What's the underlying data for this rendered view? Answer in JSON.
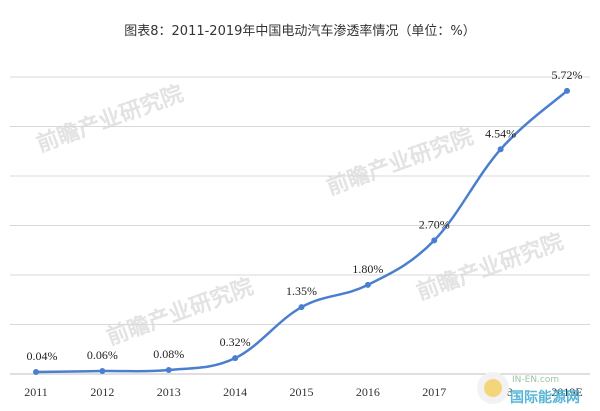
{
  "chart_data": {
    "type": "line",
    "title": "图表8：2011-2019年中国电动汽车渗透率情况（单位：%）",
    "categories": [
      "2011",
      "2012",
      "2013",
      "2014",
      "2015",
      "2016",
      "2017",
      "2018",
      "2019E"
    ],
    "series": [
      {
        "values": [
          0.04,
          0.06,
          0.08,
          0.32,
          1.35,
          1.8,
          2.7,
          4.54,
          5.72
        ],
        "labels": [
          "0.04%",
          "0.06%",
          "0.08%",
          "0.32%",
          "1.35%",
          "1.80%",
          "2.70%",
          "4.54%",
          "5.72%"
        ],
        "color": "#4a7fcf"
      }
    ],
    "ylim": [
      0,
      6
    ],
    "grid": true,
    "xlabel": "",
    "ylabel": ""
  },
  "watermark": "前瞻产业研究院",
  "logo": {
    "top": "IN-EN.com",
    "bottom": "国际能源网"
  },
  "colors": {
    "line": "#4a7fcf",
    "grid": "#d9d9d9",
    "axis": "#bfbfbf"
  }
}
